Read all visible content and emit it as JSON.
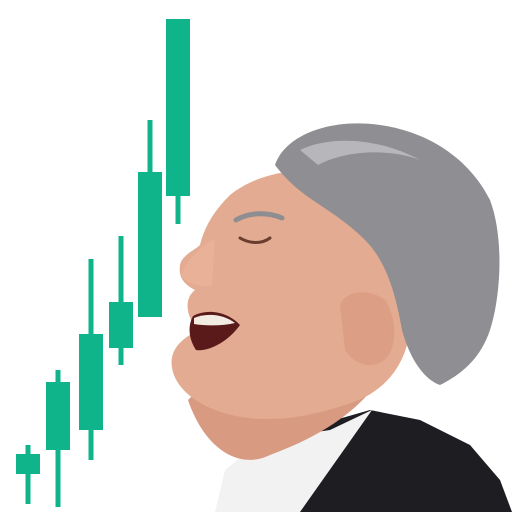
{
  "chart_data": {
    "type": "candlestick",
    "color": "#0fb48a",
    "candles": [
      {
        "open": 38,
        "close": 58,
        "high": 67,
        "low": 8
      },
      {
        "open": 62,
        "close": 130,
        "high": 142,
        "low": 5
      },
      {
        "open": 82,
        "close": 178,
        "high": 253,
        "low": 52
      },
      {
        "open": 164,
        "close": 210,
        "high": 276,
        "low": 147
      },
      {
        "open": 195,
        "close": 340,
        "high": 392,
        "low": 195
      },
      {
        "open": 316,
        "close": 493,
        "high": 493,
        "low": 288
      }
    ]
  },
  "figure": {
    "description": "laughing-man-profile",
    "suit": "#1d1d22",
    "shirt": "#f4f4f4",
    "skin": "#e0a98f",
    "hair": "#8e8d92"
  }
}
